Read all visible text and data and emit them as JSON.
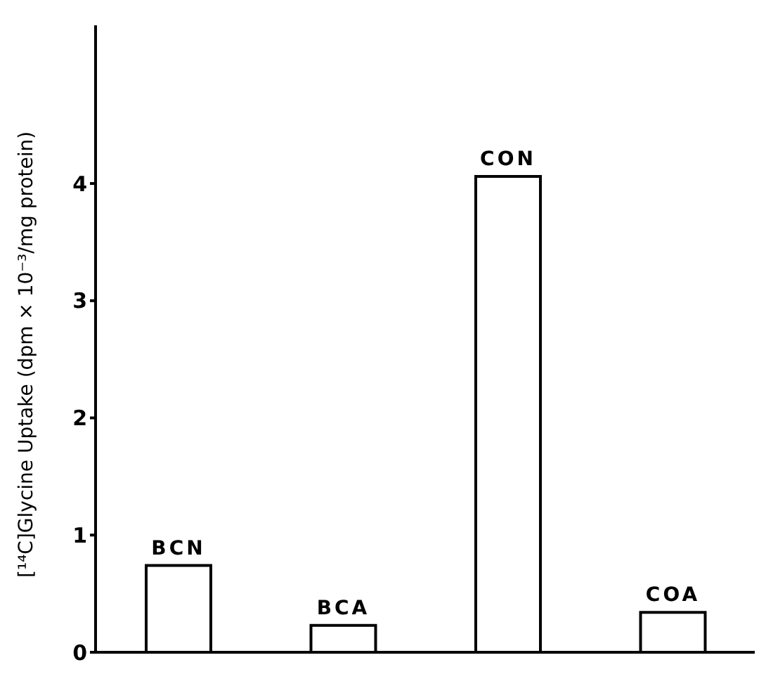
{
  "chart_data": {
    "type": "bar",
    "ylabel": "[¹⁴C]Glycine Uptake (dpm × 10⁻³/mg protein)",
    "categories": [
      "BCN",
      "BCA",
      "CON",
      "COA"
    ],
    "values": [
      0.74,
      0.23,
      4.06,
      0.34
    ],
    "color": "#ffffff",
    "ylim": [
      0,
      5.35
    ],
    "yticks": [
      0,
      1,
      2,
      3,
      4
    ],
    "grid": false,
    "tick_labels": "y"
  }
}
